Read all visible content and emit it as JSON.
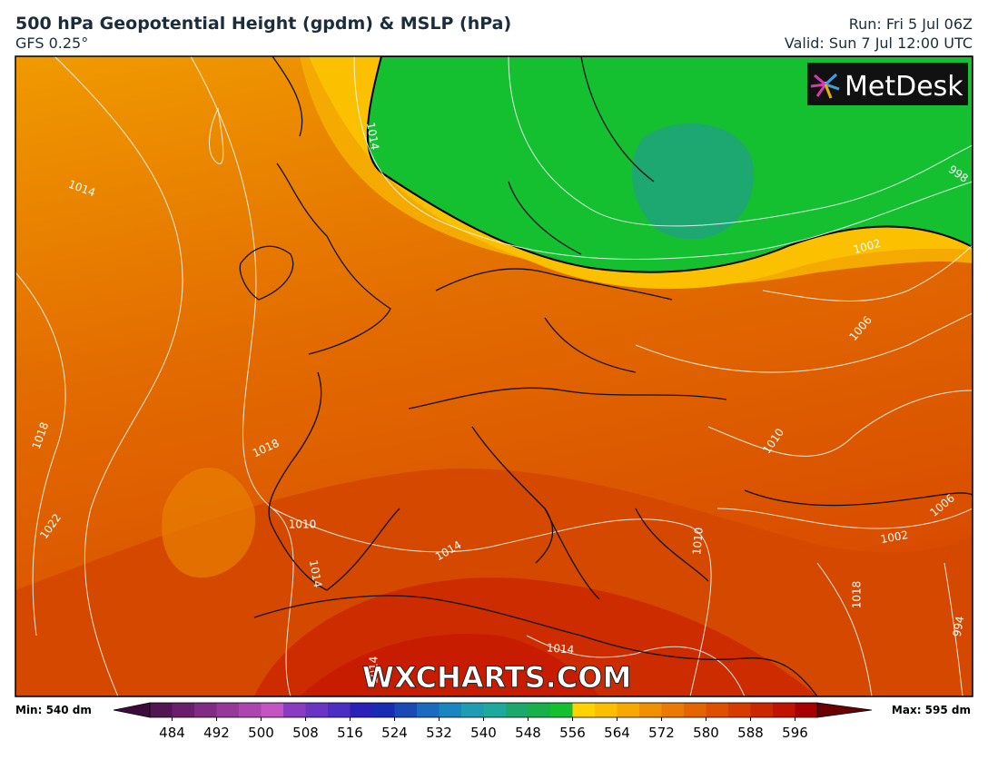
{
  "header": {
    "title": "500 hPa Geopotential Height (gpdm) & MSLP (hPa)",
    "subtitle": "GFS 0.25°",
    "run": "Run: Fri 5 Jul 06Z",
    "valid": "Valid: Sun 7 Jul 12:00 UTC"
  },
  "logo": "MetDesk",
  "watermark": "WXCHARTS.COM",
  "isobar_labels": [
    "1014",
    "1014",
    "998",
    "1002",
    "1006",
    "1010",
    "1006",
    "1002",
    "1018",
    "1018",
    "1022",
    "1010",
    "1014",
    "1010",
    "1014",
    "994",
    "1014",
    "1018",
    "1014"
  ],
  "colorbar": {
    "min_label": "Min: 540 dm",
    "max_label": "Max: 595 dm",
    "ticks": [
      484,
      492,
      500,
      508,
      516,
      524,
      532,
      540,
      548,
      556,
      564,
      572,
      580,
      588,
      596
    ],
    "colors": [
      "#3d0a3c",
      "#521652",
      "#6a1f6a",
      "#7f2c82",
      "#96389a",
      "#ad45b0",
      "#c453c4",
      "#8a3cc0",
      "#6a35c2",
      "#4a2fc2",
      "#2a22b8",
      "#1a2bb4",
      "#1a4ab4",
      "#1a6ac0",
      "#1a86c0",
      "#1d9cb4",
      "#1fa89c",
      "#1ca86c",
      "#18b04a",
      "#14c030",
      "#ffd200",
      "#fcbf00",
      "#f6a800",
      "#f09000",
      "#ea7a00",
      "#e46400",
      "#de5000",
      "#d63c00",
      "#cc2800",
      "#c01400",
      "#a80000",
      "#6a0000"
    ]
  }
}
